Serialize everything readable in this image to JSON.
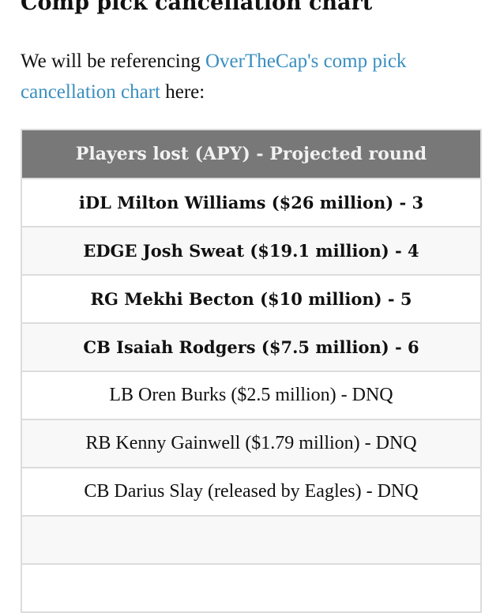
{
  "heading": "Comp pick cancellation chart",
  "intro": {
    "before": "We will be referencing ",
    "link": "OverTheCap's comp pick cancellation chart",
    "after": " here:"
  },
  "colors": {
    "link": "#3a8fc0",
    "header_bg": "#787878"
  },
  "table": {
    "header": "Players lost (APY) - Projected round",
    "rows": [
      {
        "text": "iDL Milton Williams ($26 million) - 3",
        "bold": true
      },
      {
        "text": "EDGE Josh Sweat ($19.1 million) - 4",
        "bold": true
      },
      {
        "text": "RG Mekhi Becton ($10 million) - 5",
        "bold": true
      },
      {
        "text": "CB Isaiah Rodgers ($7.5 million) - 6",
        "bold": true
      },
      {
        "text": "LB Oren Burks ($2.5 million) - DNQ",
        "bold": false
      },
      {
        "text": "RB Kenny Gainwell ($1.79 million) - DNQ",
        "bold": false
      },
      {
        "text": "CB Darius Slay (released by Eagles) - DNQ",
        "bold": false
      },
      {
        "text": "",
        "bold": false
      },
      {
        "text": "",
        "bold": false
      }
    ]
  }
}
